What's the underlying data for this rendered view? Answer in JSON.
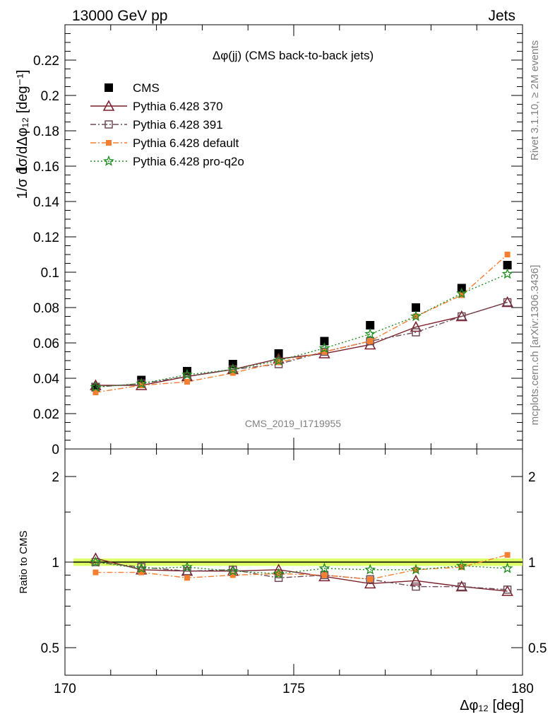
{
  "header": {
    "left": "13000 GeV pp",
    "right": "Jets"
  },
  "side_text": {
    "top": "Rivet 3.1.10, ≥ 2M events",
    "bottom": "mcplots.cern.ch [arXiv:1306.3436]"
  },
  "watermark": "CMS_2019_I1719955",
  "colors": {
    "cms": "#000000",
    "p370": "#7a1e2b",
    "p391": "#6e4a57",
    "pdefault": "#f57f31",
    "pq2o": "#1e8c1e",
    "band": "#ddff66"
  },
  "chart_data": [
    {
      "type": "scatter",
      "title": "Δφ(jj) (CMS back-to-back jets)",
      "xlabel": "Δφ₁₂ [deg]",
      "ylabel": "1/σ dσ/dΔφ₁₂ [deg⁻¹]",
      "xlim": [
        170,
        180
      ],
      "ylim": [
        0,
        0.24
      ],
      "y_ticks": [
        "0",
        "0.02",
        "0.04",
        "0.06",
        "0.08",
        "0.1",
        "0.12",
        "0.14",
        "0.16",
        "0.18",
        "0.2",
        "0.22"
      ],
      "x_ticks": [
        "170",
        "175",
        "180"
      ],
      "legend_position": "top-left",
      "x": [
        170.5,
        171.5,
        172.5,
        173.5,
        174.5,
        175.5,
        176.5,
        177.5,
        178.5,
        179.5
      ],
      "series": [
        {
          "name": "CMS",
          "values": [
            0.035,
            0.039,
            0.044,
            0.048,
            0.054,
            0.061,
            0.07,
            0.08,
            0.091,
            0.104
          ]
        },
        {
          "name": "Pythia 6.428 370",
          "values": [
            0.036,
            0.036,
            0.041,
            0.045,
            0.051,
            0.054,
            0.059,
            0.069,
            0.075,
            0.083
          ]
        },
        {
          "name": "Pythia 6.428 391",
          "values": [
            0.035,
            0.037,
            0.041,
            0.045,
            0.048,
            0.055,
            0.061,
            0.066,
            0.075,
            0.083
          ]
        },
        {
          "name": "Pythia 6.428 default",
          "values": [
            0.032,
            0.036,
            0.038,
            0.043,
            0.049,
            0.055,
            0.061,
            0.075,
            0.087,
            0.11
          ]
        },
        {
          "name": "Pythia 6.428 pro-q2o",
          "values": [
            0.035,
            0.037,
            0.042,
            0.045,
            0.05,
            0.057,
            0.065,
            0.075,
            0.088,
            0.099
          ]
        }
      ]
    },
    {
      "type": "scatter",
      "title": "",
      "xlabel": "Δφ₁₂ [deg]",
      "ylabel": "Ratio to CMS",
      "xlim": [
        170,
        180
      ],
      "ylim": [
        0.4,
        2.5
      ],
      "y_scale": "log",
      "y_ticks": [
        "0.5",
        "1",
        "2"
      ],
      "x": [
        170.5,
        171.5,
        172.5,
        173.5,
        174.5,
        175.5,
        176.5,
        177.5,
        178.5,
        179.5
      ],
      "series": [
        {
          "name": "Pythia 6.428 370",
          "values": [
            1.03,
            0.94,
            0.93,
            0.93,
            0.94,
            0.89,
            0.84,
            0.86,
            0.82,
            0.79
          ]
        },
        {
          "name": "Pythia 6.428 391",
          "values": [
            1.0,
            0.96,
            0.93,
            0.94,
            0.88,
            0.9,
            0.87,
            0.82,
            0.82,
            0.8
          ]
        },
        {
          "name": "Pythia 6.428 default",
          "values": [
            0.92,
            0.92,
            0.88,
            0.9,
            0.91,
            0.9,
            0.87,
            0.94,
            0.96,
            1.06
          ]
        },
        {
          "name": "Pythia 6.428 pro-q2o",
          "values": [
            1.0,
            0.95,
            0.96,
            0.93,
            0.91,
            0.95,
            0.94,
            0.94,
            0.97,
            0.95
          ]
        }
      ],
      "reference_band": [
        0.97,
        1.03
      ]
    }
  ]
}
